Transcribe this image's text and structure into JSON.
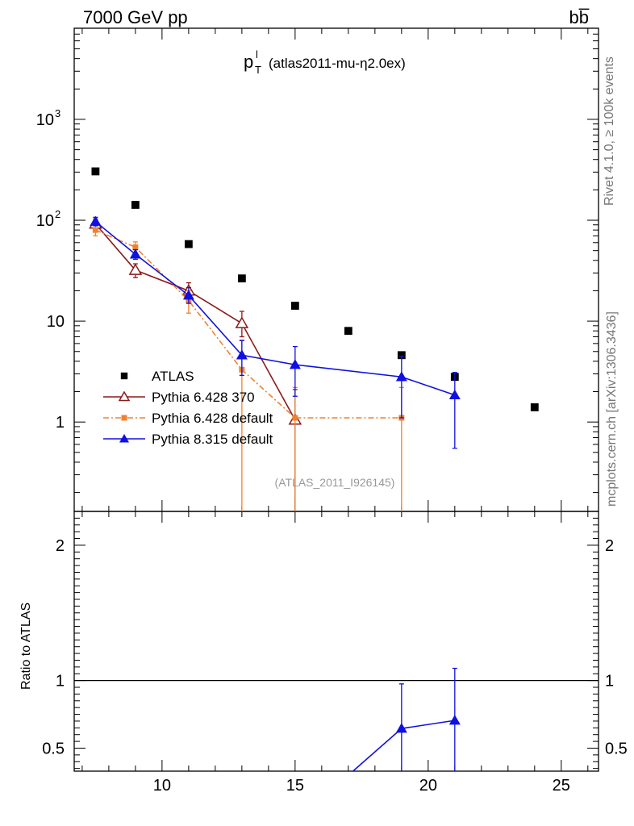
{
  "header": {
    "left": "7000 GeV pp",
    "right": "bb̅"
  },
  "title": {
    "main": "p",
    "sup": "l",
    "sub": "T",
    "detail": "(atlas2011-mu-η2.0ex)"
  },
  "side_notes": {
    "rivet": "Rivet 4.1.0, ≥ 100k events",
    "mcplots": "mcplots.cern.ch [arXiv:1306.3436]"
  },
  "reference": "(ATLAS_2011_I926145)",
  "chart_data": [
    {
      "type": "scatter",
      "panel": "main",
      "yscale": "log",
      "xlim": [
        6.7,
        26.4
      ],
      "ylim": [
        0.13,
        8000
      ],
      "y_ticks": [
        {
          "value": 1000,
          "label": "10",
          "exp": "3"
        },
        {
          "value": 100,
          "label": "10",
          "exp": "2"
        },
        {
          "value": 10,
          "label": "10",
          "exp": ""
        },
        {
          "value": 1,
          "label": "1",
          "exp": ""
        }
      ],
      "x_ticks": [
        10,
        15,
        20,
        25
      ],
      "x_tick_labels": [
        "10",
        "15",
        "20",
        "25"
      ],
      "series": [
        {
          "name": "ATLAS",
          "color": "#000000",
          "marker": "square",
          "line": "none",
          "points": [
            {
              "x": 7.5,
              "y": 305
            },
            {
              "x": 9,
              "y": 142
            },
            {
              "x": 11,
              "y": 58
            },
            {
              "x": 13,
              "y": 26.5
            },
            {
              "x": 15,
              "y": 14.2
            },
            {
              "x": 17,
              "y": 8
            },
            {
              "x": 19,
              "y": 4.6
            },
            {
              "x": 21,
              "y": 2.8
            },
            {
              "x": 24,
              "y": 1.4
            }
          ]
        },
        {
          "name": "Pythia 6.428 370",
          "color": "#8b1a1a",
          "marker": "triangle-open",
          "line": "solid",
          "points": [
            {
              "x": 7.5,
              "y": 92,
              "lo": 82,
              "hi": 103
            },
            {
              "x": 9,
              "y": 32,
              "lo": 27,
              "hi": 37
            },
            {
              "x": 11,
              "y": 20,
              "lo": 16.5,
              "hi": 24
            },
            {
              "x": 13,
              "y": 9.5,
              "lo": 7,
              "hi": 12.5
            },
            {
              "x": 15,
              "y": 1.05,
              "lo": 0.1,
              "hi": 2.1
            }
          ]
        },
        {
          "name": "Pythia 6.428 default",
          "color": "#f0822e",
          "marker": "square",
          "line": "dashdot",
          "points": [
            {
              "x": 7.5,
              "y": 80,
              "lo": 70,
              "hi": 92
            },
            {
              "x": 9,
              "y": 54,
              "lo": 47,
              "hi": 61
            },
            {
              "x": 11,
              "y": 16,
              "lo": 12,
              "hi": 20
            },
            {
              "x": 13,
              "y": 3.3,
              "lo": 0.1,
              "hi": 6.5
            },
            {
              "x": 15,
              "y": 1.1,
              "lo": 0.1,
              "hi": 2.2
            },
            {
              "x": 19,
              "y": 1.1,
              "lo": 0.1,
              "hi": 2.2
            }
          ]
        },
        {
          "name": "Pythia 8.315 default",
          "color": "#1010e0",
          "marker": "triangle",
          "line": "solid",
          "points": [
            {
              "x": 7.5,
              "y": 97,
              "lo": 88,
              "hi": 107
            },
            {
              "x": 9,
              "y": 46,
              "lo": 41,
              "hi": 51
            },
            {
              "x": 11,
              "y": 18,
              "lo": 15,
              "hi": 21.5
            },
            {
              "x": 13,
              "y": 4.6,
              "lo": 2.9,
              "hi": 6.4
            },
            {
              "x": 15,
              "y": 3.7,
              "lo": 1.8,
              "hi": 5.6
            },
            {
              "x": 19,
              "y": 2.8,
              "lo": 1.1,
              "hi": 4.5
            },
            {
              "x": 21,
              "y": 1.85,
              "lo": 0.55,
              "hi": 3.1
            }
          ]
        }
      ]
    },
    {
      "type": "line",
      "panel": "ratio",
      "ylabel": "Ratio to ATLAS",
      "xlim": [
        6.7,
        26.4
      ],
      "ylim": [
        0.33,
        2.25
      ],
      "reference_line": 1,
      "y_ticks": [
        0.5,
        1,
        2
      ],
      "y_tick_labels": [
        "0.5",
        "1",
        "2"
      ],
      "series": [
        {
          "name": "Pythia 8.315 default",
          "color": "#1010e0",
          "marker": "triangle",
          "points": [
            {
              "x": 17,
              "y": 0.3
            },
            {
              "x": 19,
              "y": 0.645,
              "lo": 0.3,
              "hi": 0.975
            },
            {
              "x": 21,
              "y": 0.705,
              "lo": 0.3,
              "hi": 1.09
            }
          ]
        }
      ]
    }
  ]
}
